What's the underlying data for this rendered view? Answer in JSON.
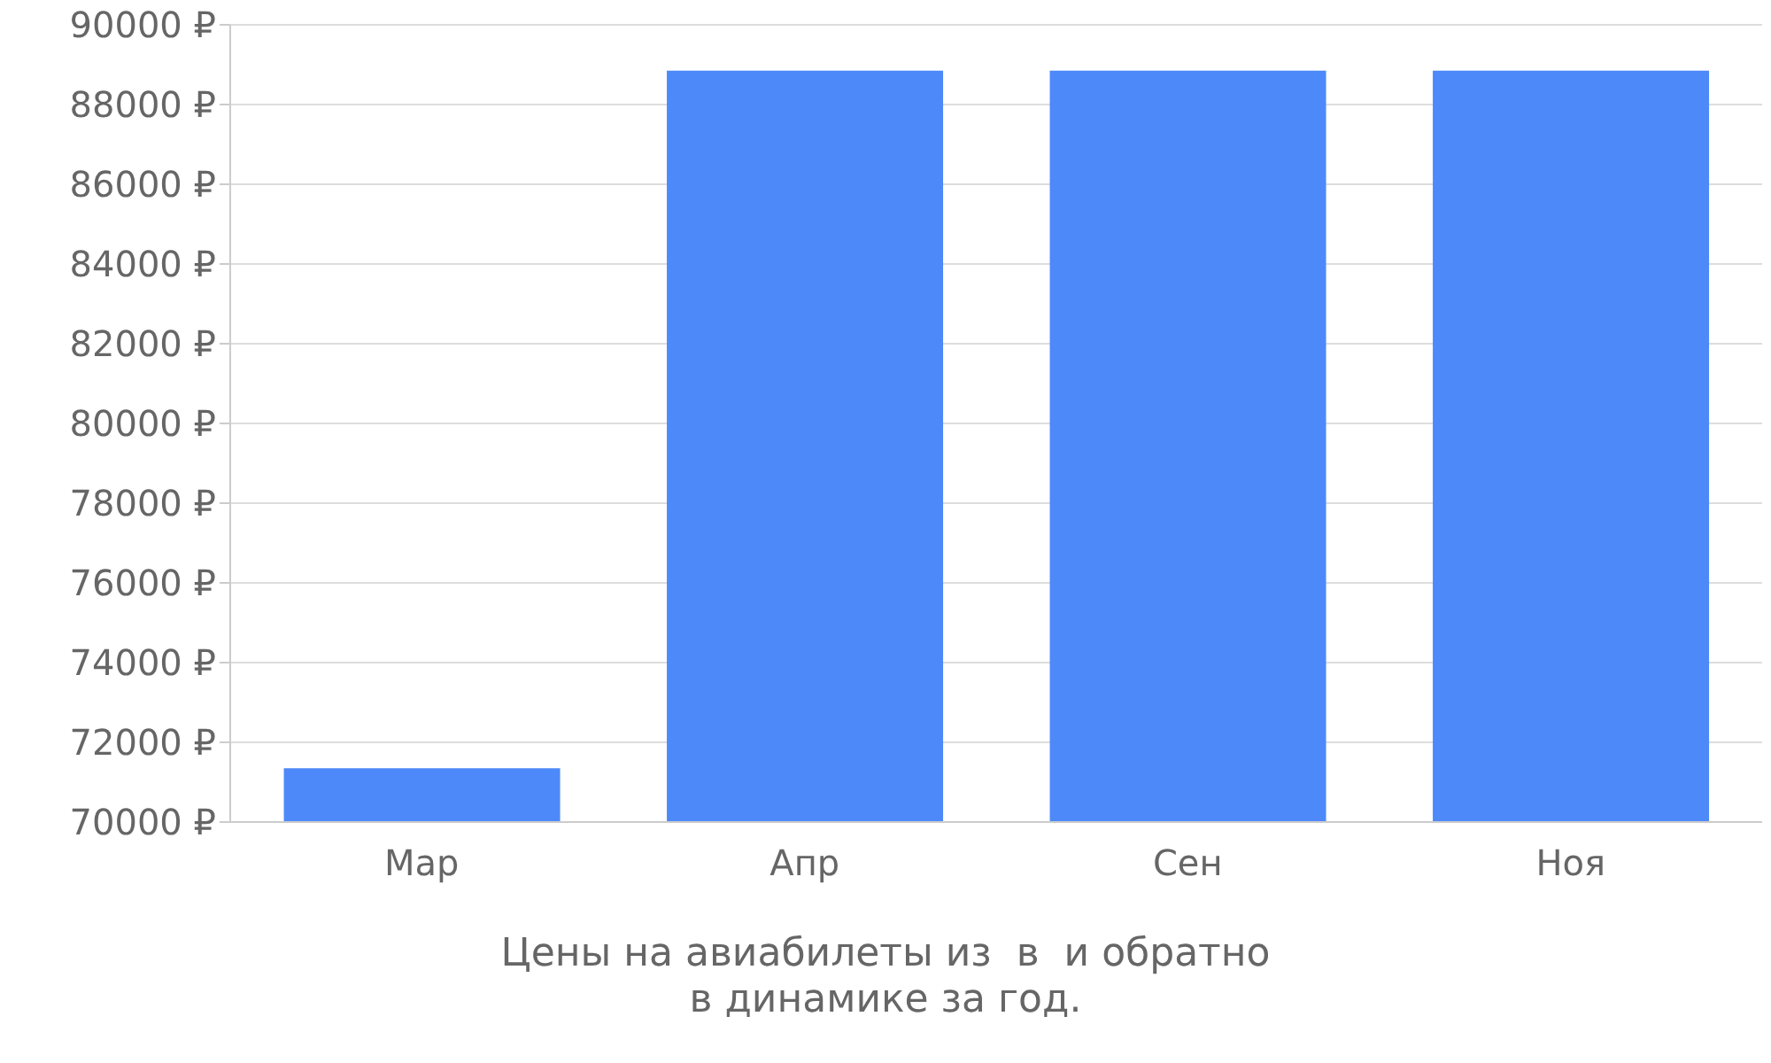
{
  "chart_data": {
    "type": "bar",
    "title": "Цены на авиабилеты из  в  и обратно\nв динамике за год.",
    "categories": [
      "Мар",
      "Апр",
      "Сен",
      "Ноя"
    ],
    "values": [
      71350,
      88850,
      88850,
      88850
    ],
    "color": "#4d89f9",
    "ylim": [
      70000,
      90000
    ],
    "yticks": [
      {
        "value": 70000,
        "label": "70000 ₽"
      },
      {
        "value": 72000,
        "label": "72000 ₽"
      },
      {
        "value": 74000,
        "label": "74000 ₽"
      },
      {
        "value": 76000,
        "label": "76000 ₽"
      },
      {
        "value": 78000,
        "label": "78000 ₽"
      },
      {
        "value": 80000,
        "label": "80000 ₽"
      },
      {
        "value": 82000,
        "label": "82000 ₽"
      },
      {
        "value": 84000,
        "label": "84000 ₽"
      },
      {
        "value": 86000,
        "label": "86000 ₽"
      },
      {
        "value": 88000,
        "label": "88000 ₽"
      },
      {
        "value": 90000,
        "label": "90000 ₽"
      }
    ],
    "grid": true
  }
}
